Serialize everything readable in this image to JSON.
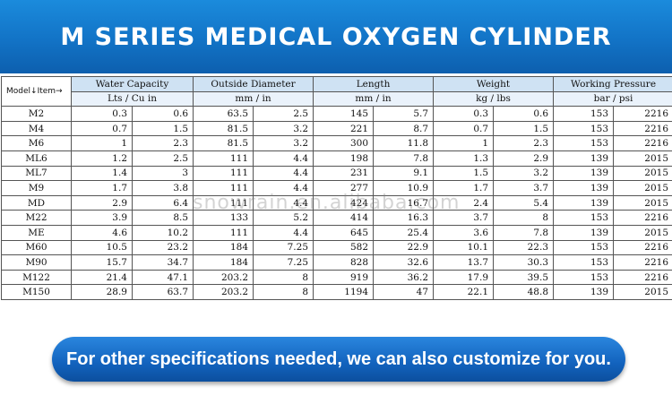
{
  "title": "M SERIES MEDICAL OXYGEN CYLINDER",
  "table": {
    "corner_label": "Model↓Item→",
    "groups": [
      "Water Capacity",
      "Outside Diameter",
      "Length",
      "Weight",
      "Working Pressure"
    ],
    "units": [
      "Lts / Cu in",
      "mm / in",
      "mm / in",
      "kg / lbs",
      "bar / psi"
    ],
    "rows": [
      [
        "M2",
        "0.3",
        "0.6",
        "63.5",
        "2.5",
        "145",
        "5.7",
        "0.3",
        "0.6",
        "153",
        "2216"
      ],
      [
        "M4",
        "0.7",
        "1.5",
        "81.5",
        "3.2",
        "221",
        "8.7",
        "0.7",
        "1.5",
        "153",
        "2216"
      ],
      [
        "M6",
        "1",
        "2.3",
        "81.5",
        "3.2",
        "300",
        "11.8",
        "1",
        "2.3",
        "153",
        "2216"
      ],
      [
        "ML6",
        "1.2",
        "2.5",
        "111",
        "4.4",
        "198",
        "7.8",
        "1.3",
        "2.9",
        "139",
        "2015"
      ],
      [
        "ML7",
        "1.4",
        "3",
        "111",
        "4.4",
        "231",
        "9.1",
        "1.5",
        "3.2",
        "139",
        "2015"
      ],
      [
        "M9",
        "1.7",
        "3.8",
        "111",
        "4.4",
        "277",
        "10.9",
        "1.7",
        "3.7",
        "139",
        "2015"
      ],
      [
        "MD",
        "2.9",
        "6.4",
        "111",
        "4.4",
        "424",
        "16.7",
        "2.4",
        "5.4",
        "139",
        "2015"
      ],
      [
        "M22",
        "3.9",
        "8.5",
        "133",
        "5.2",
        "414",
        "16.3",
        "3.7",
        "8",
        "153",
        "2216"
      ],
      [
        "ME",
        "4.6",
        "10.2",
        "111",
        "4.4",
        "645",
        "25.4",
        "3.6",
        "7.8",
        "139",
        "2015"
      ],
      [
        "M60",
        "10.5",
        "23.2",
        "184",
        "7.25",
        "582",
        "22.9",
        "10.1",
        "22.3",
        "153",
        "2216"
      ],
      [
        "M90",
        "15.7",
        "34.7",
        "184",
        "7.25",
        "828",
        "32.6",
        "13.7",
        "30.3",
        "153",
        "2216"
      ],
      [
        "M122",
        "21.4",
        "47.1",
        "203.2",
        "8",
        "919",
        "36.2",
        "17.9",
        "39.5",
        "153",
        "2216"
      ],
      [
        "M150",
        "28.9",
        "63.7",
        "203.2",
        "8",
        "1194",
        "47",
        "22.1",
        "48.8",
        "139",
        "2015"
      ]
    ]
  },
  "watermark": "snowrain.en.alibaba.com",
  "footer_button": "For other specifications needed, we can also customize for you."
}
